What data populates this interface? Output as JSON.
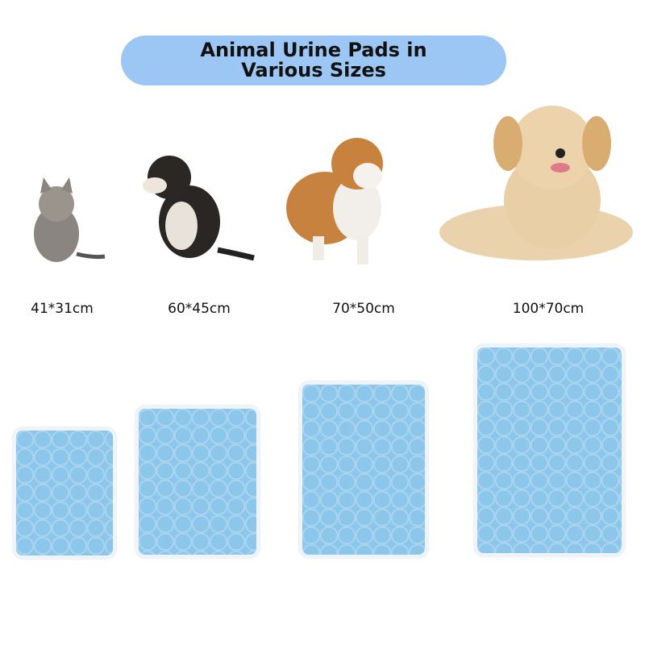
{
  "title": {
    "line1": "Animal Urine Pads in",
    "line2": "Various Sizes"
  },
  "colors": {
    "banner": "#9cc6f3",
    "pad": "#8cc6ea"
  },
  "products": [
    {
      "animal": "kitten",
      "size": "41*31cm"
    },
    {
      "animal": "puppy",
      "size": "60*45cm"
    },
    {
      "animal": "corgi",
      "size": "70*50cm"
    },
    {
      "animal": "golden-retriever",
      "size": "100*70cm"
    }
  ]
}
